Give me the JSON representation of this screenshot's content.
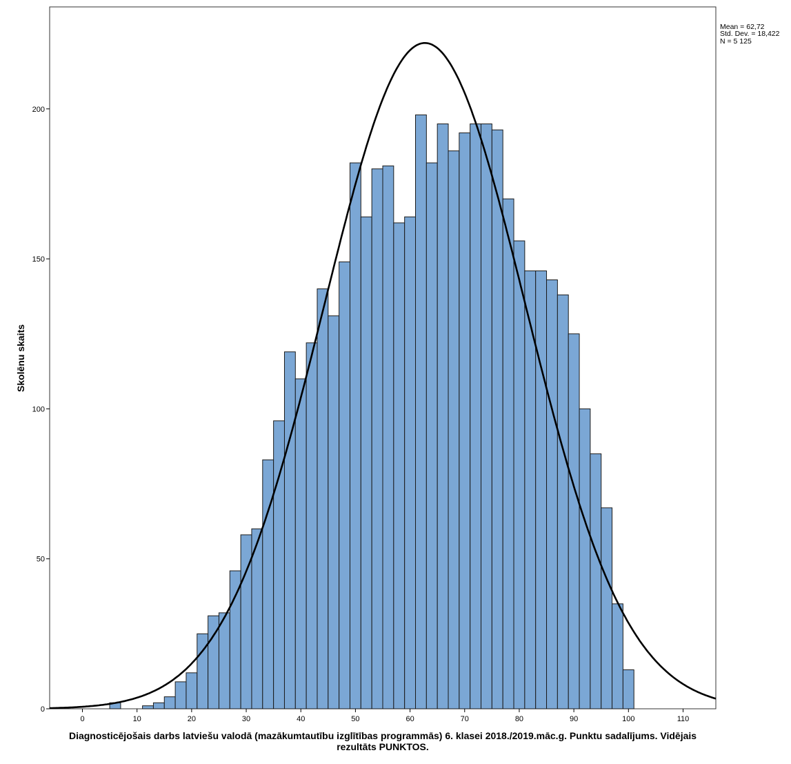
{
  "chart_data": {
    "type": "bar",
    "subtype": "histogram",
    "xlabel_lines": [
      "Diagnosticējošais darbs latviešu valodā (mazākumtautību izglītības programmās) 6. klasei 2018./2019.māc.g. Punktu sadalījums. Vidējais",
      "rezultāts PUNKTOS."
    ],
    "ylabel": "Skolēnu skaits",
    "xlim": [
      -6,
      116
    ],
    "ylim": [
      0,
      234
    ],
    "x_ticks": [
      0,
      10,
      20,
      30,
      40,
      50,
      60,
      70,
      80,
      90,
      100,
      110
    ],
    "y_ticks": [
      0,
      50,
      100,
      150,
      200
    ],
    "bin_width": 2,
    "bin_starts": [
      5,
      7,
      9,
      11,
      13,
      15,
      17,
      19,
      21,
      23,
      25,
      27,
      29,
      31,
      33,
      35,
      37,
      39,
      41,
      43,
      45,
      47,
      49,
      51,
      53,
      55,
      57,
      59,
      61,
      63,
      65,
      67,
      69,
      71,
      73,
      75,
      77,
      79,
      81,
      83,
      85,
      87,
      89,
      91,
      93,
      95,
      97,
      99
    ],
    "values": [
      2,
      0,
      0,
      1,
      2,
      4,
      9,
      12,
      25,
      31,
      32,
      46,
      58,
      60,
      83,
      96,
      119,
      110,
      122,
      140,
      131,
      149,
      182,
      164,
      180,
      181,
      162,
      164,
      198,
      182,
      195,
      186,
      192,
      195,
      195,
      193,
      170,
      156,
      146,
      146,
      143,
      138,
      125,
      100,
      85,
      67,
      35,
      13
    ],
    "normal_curve": {
      "mean": 62.72,
      "std": 18.422,
      "n": 5125
    },
    "stats_text": [
      "Mean = 62,72",
      "Std. Dev. = 18,422",
      "N = 5 125"
    ],
    "colors": {
      "bar": "#7ba7d5",
      "bar_edge": "#1a1a1a",
      "curve": "#000000"
    }
  }
}
